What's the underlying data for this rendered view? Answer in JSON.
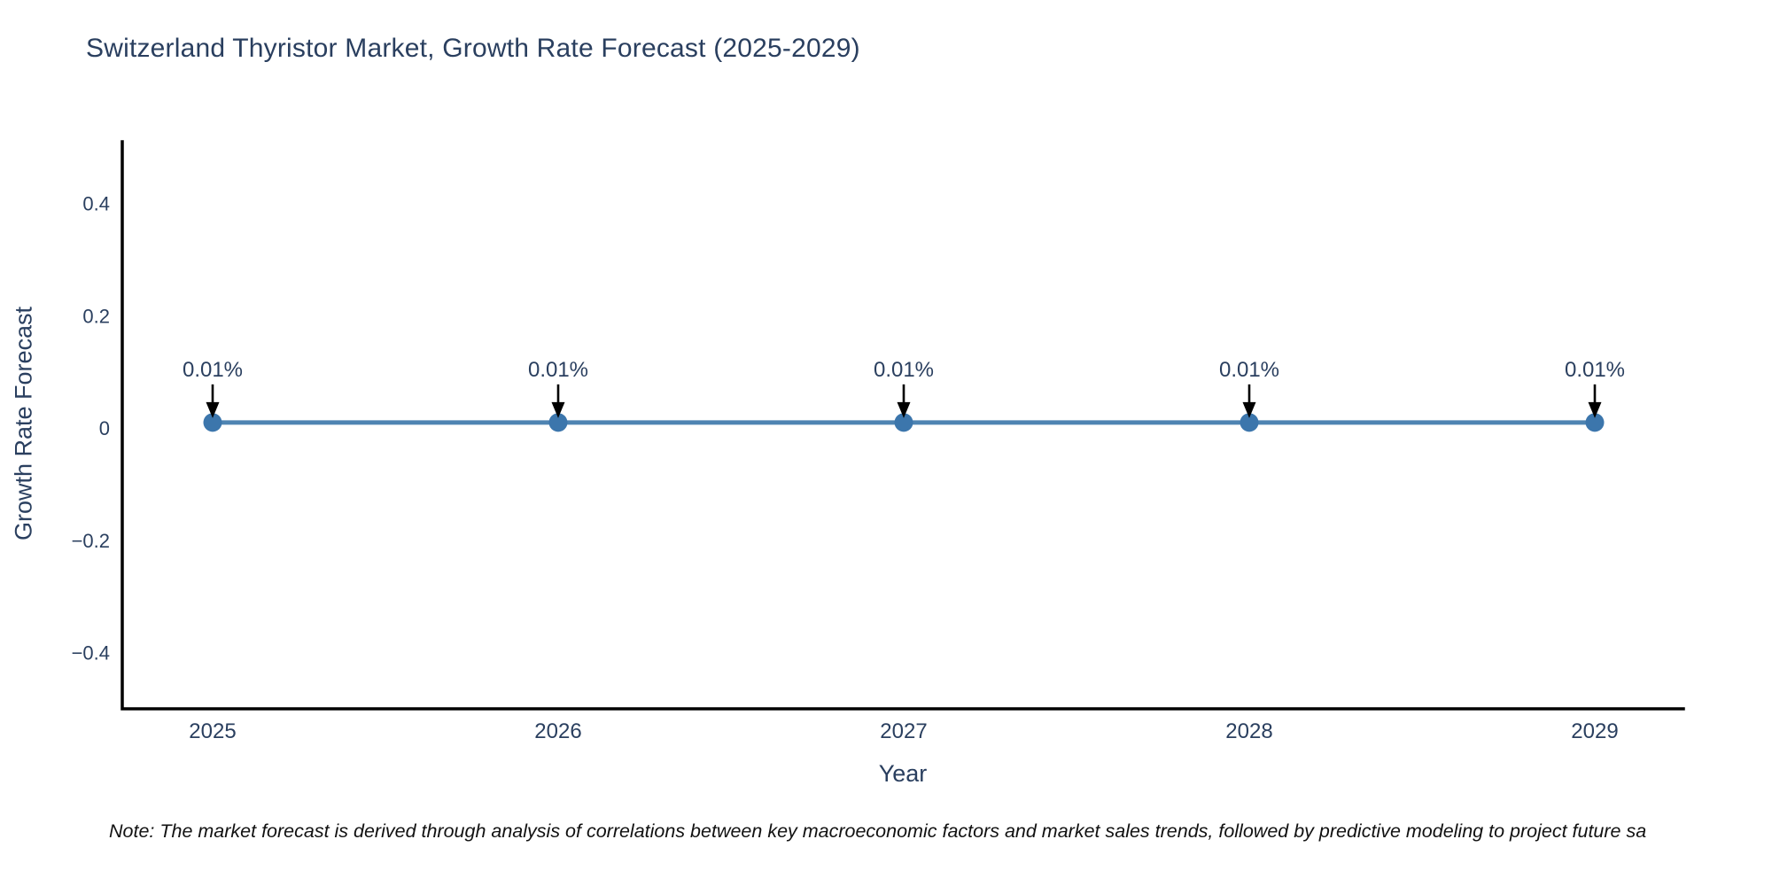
{
  "chart_data": {
    "type": "line",
    "title": "Switzerland Thyristor Market, Growth Rate Forecast (2025-2029)",
    "xlabel": "Year",
    "ylabel": "Growth Rate Forecast",
    "categories": [
      "2025",
      "2026",
      "2027",
      "2028",
      "2029"
    ],
    "series": [
      {
        "name": "Growth Rate Forecast",
        "values": [
          0.01,
          0.01,
          0.01,
          0.01,
          0.01
        ],
        "point_labels": [
          "0.01%",
          "0.01%",
          "0.01%",
          "0.01%",
          "0.01%"
        ]
      }
    ],
    "y_tick_values": [
      0.4,
      0.2,
      0,
      -0.2,
      -0.4
    ],
    "y_tick_labels": [
      "0.4",
      "0.2",
      "0",
      "−0.2",
      "−0.4"
    ],
    "ylim": [
      -0.5,
      0.51
    ],
    "grid": false,
    "legend": "none",
    "annotation_style": "label-with-down-arrow",
    "colors": {
      "line": "#4e84b2",
      "marker": "#3c76ac",
      "axis": "#000000",
      "text": "#2a3f5f",
      "arrow": "#000000"
    },
    "note": "Note: The market forecast is derived through analysis of correlations between key macroeconomic factors and market sales trends, followed by predictive modeling to project future sa"
  }
}
